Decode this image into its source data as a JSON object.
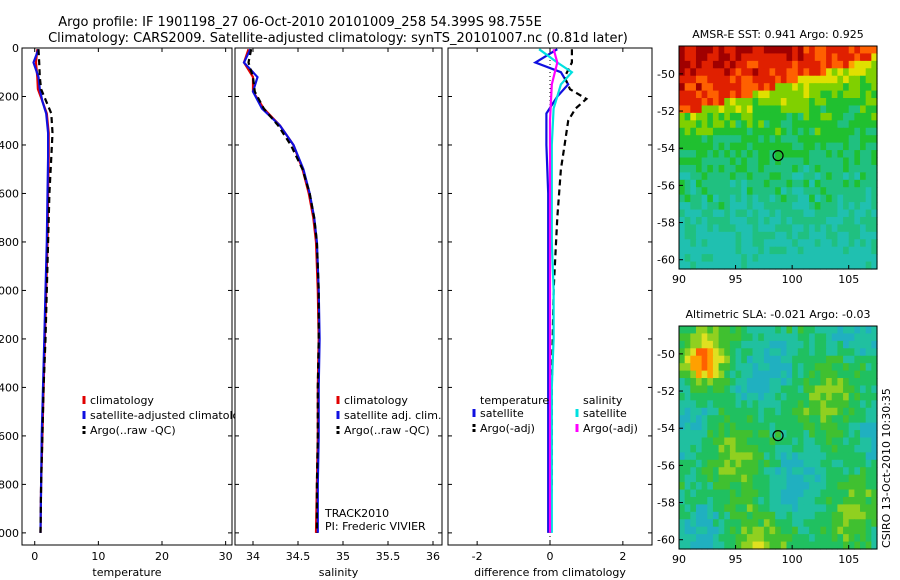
{
  "figure_title": {
    "line1": "Argo profile: IF 1901198_27 06-Oct-2010 20101009_258 54.399S 98.755E",
    "line2": "Climatology: CARS2009. Satellite-adjusted climatology: synTS_20101007.nc (0.81d later)"
  },
  "side_stamp": "CSIRO 13-Oct-2010 10:30:35",
  "colors": {
    "climatology": "#e00000",
    "satellite": "#1010e0",
    "argo": "#000000",
    "sal_satellite": "#00e0e0",
    "sal_argo": "#ff00ff",
    "map_sst_warm": "#a00000",
    "map_green": "#20c030",
    "map_cyan": "#20c0b0"
  },
  "chart_data": [
    {
      "type": "line",
      "panel": "temperature",
      "xlabel": "temperature",
      "xlim": [
        -2,
        31
      ],
      "ylim": [
        2050,
        0
      ],
      "xticks": [
        "0",
        "10",
        "20",
        "30"
      ],
      "xtick_values": [
        0,
        10,
        20,
        30
      ],
      "yticks": [
        "0",
        "200",
        "400",
        "600",
        "800",
        "1000",
        "1200",
        "1400",
        "1600",
        "1800",
        "2000"
      ],
      "ytick_values": [
        0,
        200,
        400,
        600,
        800,
        1000,
        1200,
        1400,
        1600,
        1800,
        2000
      ],
      "grid": false,
      "legend": [
        "climatology",
        "satellite-adjusted climatolog",
        "Argo(..raw -QC)"
      ],
      "series": [
        {
          "name": "climatology",
          "color": "#e00000",
          "dash": false,
          "points": [
            [
              0.4,
              5
            ],
            [
              0.2,
              60
            ],
            [
              0.4,
              120
            ],
            [
              0.5,
              170
            ],
            [
              1.2,
              220
            ],
            [
              1.9,
              270
            ],
            [
              2.2,
              350
            ],
            [
              2.2,
              450
            ],
            [
              2.1,
              600
            ],
            [
              2.0,
              800
            ],
            [
              1.8,
              1000
            ],
            [
              1.6,
              1200
            ],
            [
              1.4,
              1400
            ],
            [
              1.2,
              1600
            ],
            [
              1.0,
              1800
            ],
            [
              0.9,
              2000
            ]
          ]
        },
        {
          "name": "satellite-adjusted climatolog",
          "color": "#1010e0",
          "dash": false,
          "points": [
            [
              0.6,
              5
            ],
            [
              -0.2,
              60
            ],
            [
              0.6,
              120
            ],
            [
              0.8,
              170
            ],
            [
              1.2,
              220
            ],
            [
              1.8,
              270
            ],
            [
              2.1,
              350
            ],
            [
              2.1,
              450
            ],
            [
              2.0,
              600
            ],
            [
              1.9,
              800
            ],
            [
              1.7,
              1000
            ],
            [
              1.5,
              1200
            ],
            [
              1.3,
              1400
            ],
            [
              1.1,
              1600
            ],
            [
              1.0,
              1800
            ],
            [
              0.9,
              2000
            ]
          ]
        },
        {
          "name": "Argo(..raw -QC)",
          "color": "#000000",
          "dash": true,
          "points": [
            [
              0.6,
              5
            ],
            [
              0.7,
              60
            ],
            [
              0.8,
              120
            ],
            [
              1.0,
              170
            ],
            [
              1.8,
              220
            ],
            [
              2.6,
              270
            ],
            [
              2.8,
              350
            ],
            [
              2.6,
              450
            ],
            [
              2.3,
              600
            ],
            [
              2.1,
              800
            ],
            [
              1.9,
              1000
            ],
            [
              1.7,
              1200
            ],
            [
              1.4,
              1400
            ],
            [
              1.2,
              1600
            ],
            [
              1.0,
              1800
            ],
            [
              0.9,
              2000
            ]
          ]
        }
      ]
    },
    {
      "type": "line",
      "panel": "salinity",
      "xlabel": "salinity",
      "xlim": [
        33.8,
        36.1
      ],
      "ylim": [
        2050,
        0
      ],
      "xticks": [
        "34",
        "34.5",
        "35",
        "35.5",
        "36"
      ],
      "xtick_values": [
        34,
        34.5,
        35,
        35.5,
        36
      ],
      "grid": false,
      "legend": [
        "climatology",
        "satellite adj. clim.",
        "Argo(..raw -QC)"
      ],
      "annotations": [
        "TRACK2010",
        "PI: Frederic VIVIER"
      ],
      "series": [
        {
          "name": "climatology",
          "color": "#e00000",
          "dash": false,
          "points": [
            [
              33.95,
              5
            ],
            [
              33.9,
              60
            ],
            [
              34.0,
              120
            ],
            [
              34.0,
              180
            ],
            [
              34.12,
              250
            ],
            [
              34.3,
              320
            ],
            [
              34.45,
              400
            ],
            [
              34.55,
              500
            ],
            [
              34.62,
              600
            ],
            [
              34.67,
              700
            ],
            [
              34.7,
              800
            ],
            [
              34.72,
              1000
            ],
            [
              34.73,
              1200
            ],
            [
              34.72,
              1400
            ],
            [
              34.72,
              1600
            ],
            [
              34.71,
              1800
            ],
            [
              34.7,
              2000
            ]
          ]
        },
        {
          "name": "satellite adj. clim.",
          "color": "#1010e0",
          "dash": false,
          "points": [
            [
              33.97,
              5
            ],
            [
              33.9,
              60
            ],
            [
              34.05,
              120
            ],
            [
              34.0,
              180
            ],
            [
              34.1,
              250
            ],
            [
              34.3,
              320
            ],
            [
              34.45,
              400
            ],
            [
              34.56,
              500
            ],
            [
              34.63,
              600
            ],
            [
              34.68,
              700
            ],
            [
              34.71,
              800
            ],
            [
              34.73,
              1000
            ],
            [
              34.74,
              1200
            ],
            [
              34.73,
              1400
            ],
            [
              34.73,
              1600
            ],
            [
              34.72,
              1800
            ],
            [
              34.72,
              2000
            ]
          ]
        },
        {
          "name": "Argo(..raw -QC)",
          "color": "#000000",
          "dash": true,
          "points": [
            [
              33.98,
              5
            ],
            [
              33.95,
              60
            ],
            [
              34.0,
              120
            ],
            [
              34.02,
              180
            ],
            [
              34.12,
              250
            ],
            [
              34.28,
              320
            ],
            [
              34.42,
              400
            ],
            [
              34.55,
              500
            ],
            [
              34.63,
              600
            ],
            [
              34.68,
              700
            ],
            [
              34.71,
              800
            ],
            [
              34.73,
              1000
            ],
            [
              34.73,
              1200
            ],
            [
              34.72,
              1400
            ],
            [
              34.72,
              1600
            ],
            [
              34.71,
              1800
            ],
            [
              34.71,
              2000
            ]
          ]
        }
      ]
    },
    {
      "type": "line",
      "panel": "difference",
      "xlabel": "difference from climatology",
      "xlim": [
        -2.8,
        2.8
      ],
      "ylim": [
        2050,
        0
      ],
      "xticks": [
        "-2",
        "0",
        "2"
      ],
      "xtick_values": [
        -2,
        0,
        2
      ],
      "grid": false,
      "legend_groups": [
        {
          "title": "temperature",
          "entries": [
            "satellite",
            "Argo(-adj)"
          ]
        },
        {
          "title": "salinity",
          "entries": [
            "satellite",
            "Argo(-adj)"
          ]
        }
      ],
      "series": [
        {
          "name": "satellite",
          "group": "temperature",
          "color": "#1010e0",
          "dash": false,
          "points": [
            [
              0.2,
              5
            ],
            [
              -0.4,
              60
            ],
            [
              0.3,
              100
            ],
            [
              0.5,
              150
            ],
            [
              0.2,
              200
            ],
            [
              -0.1,
              270
            ],
            [
              -0.1,
              400
            ],
            [
              -0.05,
              600
            ],
            [
              -0.05,
              800
            ],
            [
              -0.05,
              1000
            ],
            [
              -0.05,
              1200
            ],
            [
              -0.05,
              1400
            ],
            [
              -0.05,
              1600
            ],
            [
              -0.05,
              1800
            ],
            [
              -0.05,
              2000
            ]
          ]
        },
        {
          "name": "Argo(-adj)",
          "group": "temperature",
          "color": "#000000",
          "dash": true,
          "points": [
            [
              0.6,
              5
            ],
            [
              0.6,
              60
            ],
            [
              0.4,
              120
            ],
            [
              0.55,
              170
            ],
            [
              1.0,
              210
            ],
            [
              0.7,
              250
            ],
            [
              0.5,
              300
            ],
            [
              0.4,
              400
            ],
            [
              0.3,
              500
            ],
            [
              0.2,
              700
            ],
            [
              0.1,
              1000
            ],
            [
              0.05,
              1400
            ],
            [
              0.05,
              1800
            ],
            [
              0.0,
              2000
            ]
          ]
        },
        {
          "name": "satellite",
          "group": "salinity",
          "color": "#00e0e0",
          "dash": false,
          "points": [
            [
              -0.3,
              5
            ],
            [
              0.2,
              60
            ],
            [
              0.6,
              100
            ],
            [
              0.3,
              150
            ],
            [
              0.1,
              250
            ],
            [
              0.05,
              400
            ],
            [
              0.05,
              600
            ],
            [
              0.05,
              800
            ],
            [
              0.1,
              1000
            ],
            [
              0.1,
              1200
            ],
            [
              0.05,
              1400
            ],
            [
              0.05,
              1600
            ],
            [
              0.05,
              1800
            ],
            [
              0.05,
              2000
            ]
          ]
        },
        {
          "name": "Argo(-adj)",
          "group": "salinity",
          "color": "#ff00ff",
          "dash": false,
          "points": [
            [
              0.1,
              5
            ],
            [
              0.2,
              60
            ],
            [
              0.05,
              150
            ],
            [
              0.0,
              300
            ],
            [
              0.0,
              450
            ],
            [
              0.0,
              650
            ],
            [
              0.0,
              900
            ],
            [
              0.0,
              1200
            ],
            [
              0.0,
              1500
            ],
            [
              0.0,
              1800
            ],
            [
              0.0,
              2000
            ]
          ]
        }
      ]
    },
    {
      "type": "heatmap",
      "panel": "sst_map",
      "title": "AMSR-E SST: 0.941  Argo: 0.925",
      "xlim": [
        90,
        107.5
      ],
      "ylim": [
        -60.5,
        -48.5
      ],
      "xticks": [
        "90",
        "95",
        "100",
        "105"
      ],
      "xtick_values": [
        90,
        95,
        100,
        105
      ],
      "yticks": [
        "-50",
        "-52",
        "-54",
        "-56",
        "-58",
        "-60"
      ],
      "ytick_values": [
        -50,
        -52,
        -54,
        -56,
        -58,
        -60
      ],
      "marker": {
        "lon": 98.755,
        "lat": -54.399
      },
      "colors": [
        "#a00000",
        "#e02000",
        "#ff6000",
        "#ffa000",
        "#e0e000",
        "#80d000",
        "#20c030",
        "#20c080",
        "#20c0b0"
      ]
    },
    {
      "type": "heatmap",
      "panel": "sla_map",
      "title": "Altimetric SLA: -0.021  Argo: -0.03",
      "xlim": [
        90,
        107.5
      ],
      "ylim": [
        -60.5,
        -48.5
      ],
      "xticks": [
        "90",
        "95",
        "100",
        "105"
      ],
      "xtick_values": [
        90,
        95,
        100,
        105
      ],
      "yticks": [
        "-50",
        "-52",
        "-54",
        "-56",
        "-58",
        "-60"
      ],
      "ytick_values": [
        -50,
        -52,
        -54,
        -56,
        -58,
        -60
      ],
      "marker": {
        "lon": 98.755,
        "lat": -54.399
      },
      "colors": [
        "#20b0c0",
        "#20c0a0",
        "#20c060",
        "#40c030",
        "#90d020",
        "#e0e020",
        "#ffa000",
        "#ff6000",
        "#d02000"
      ]
    }
  ]
}
